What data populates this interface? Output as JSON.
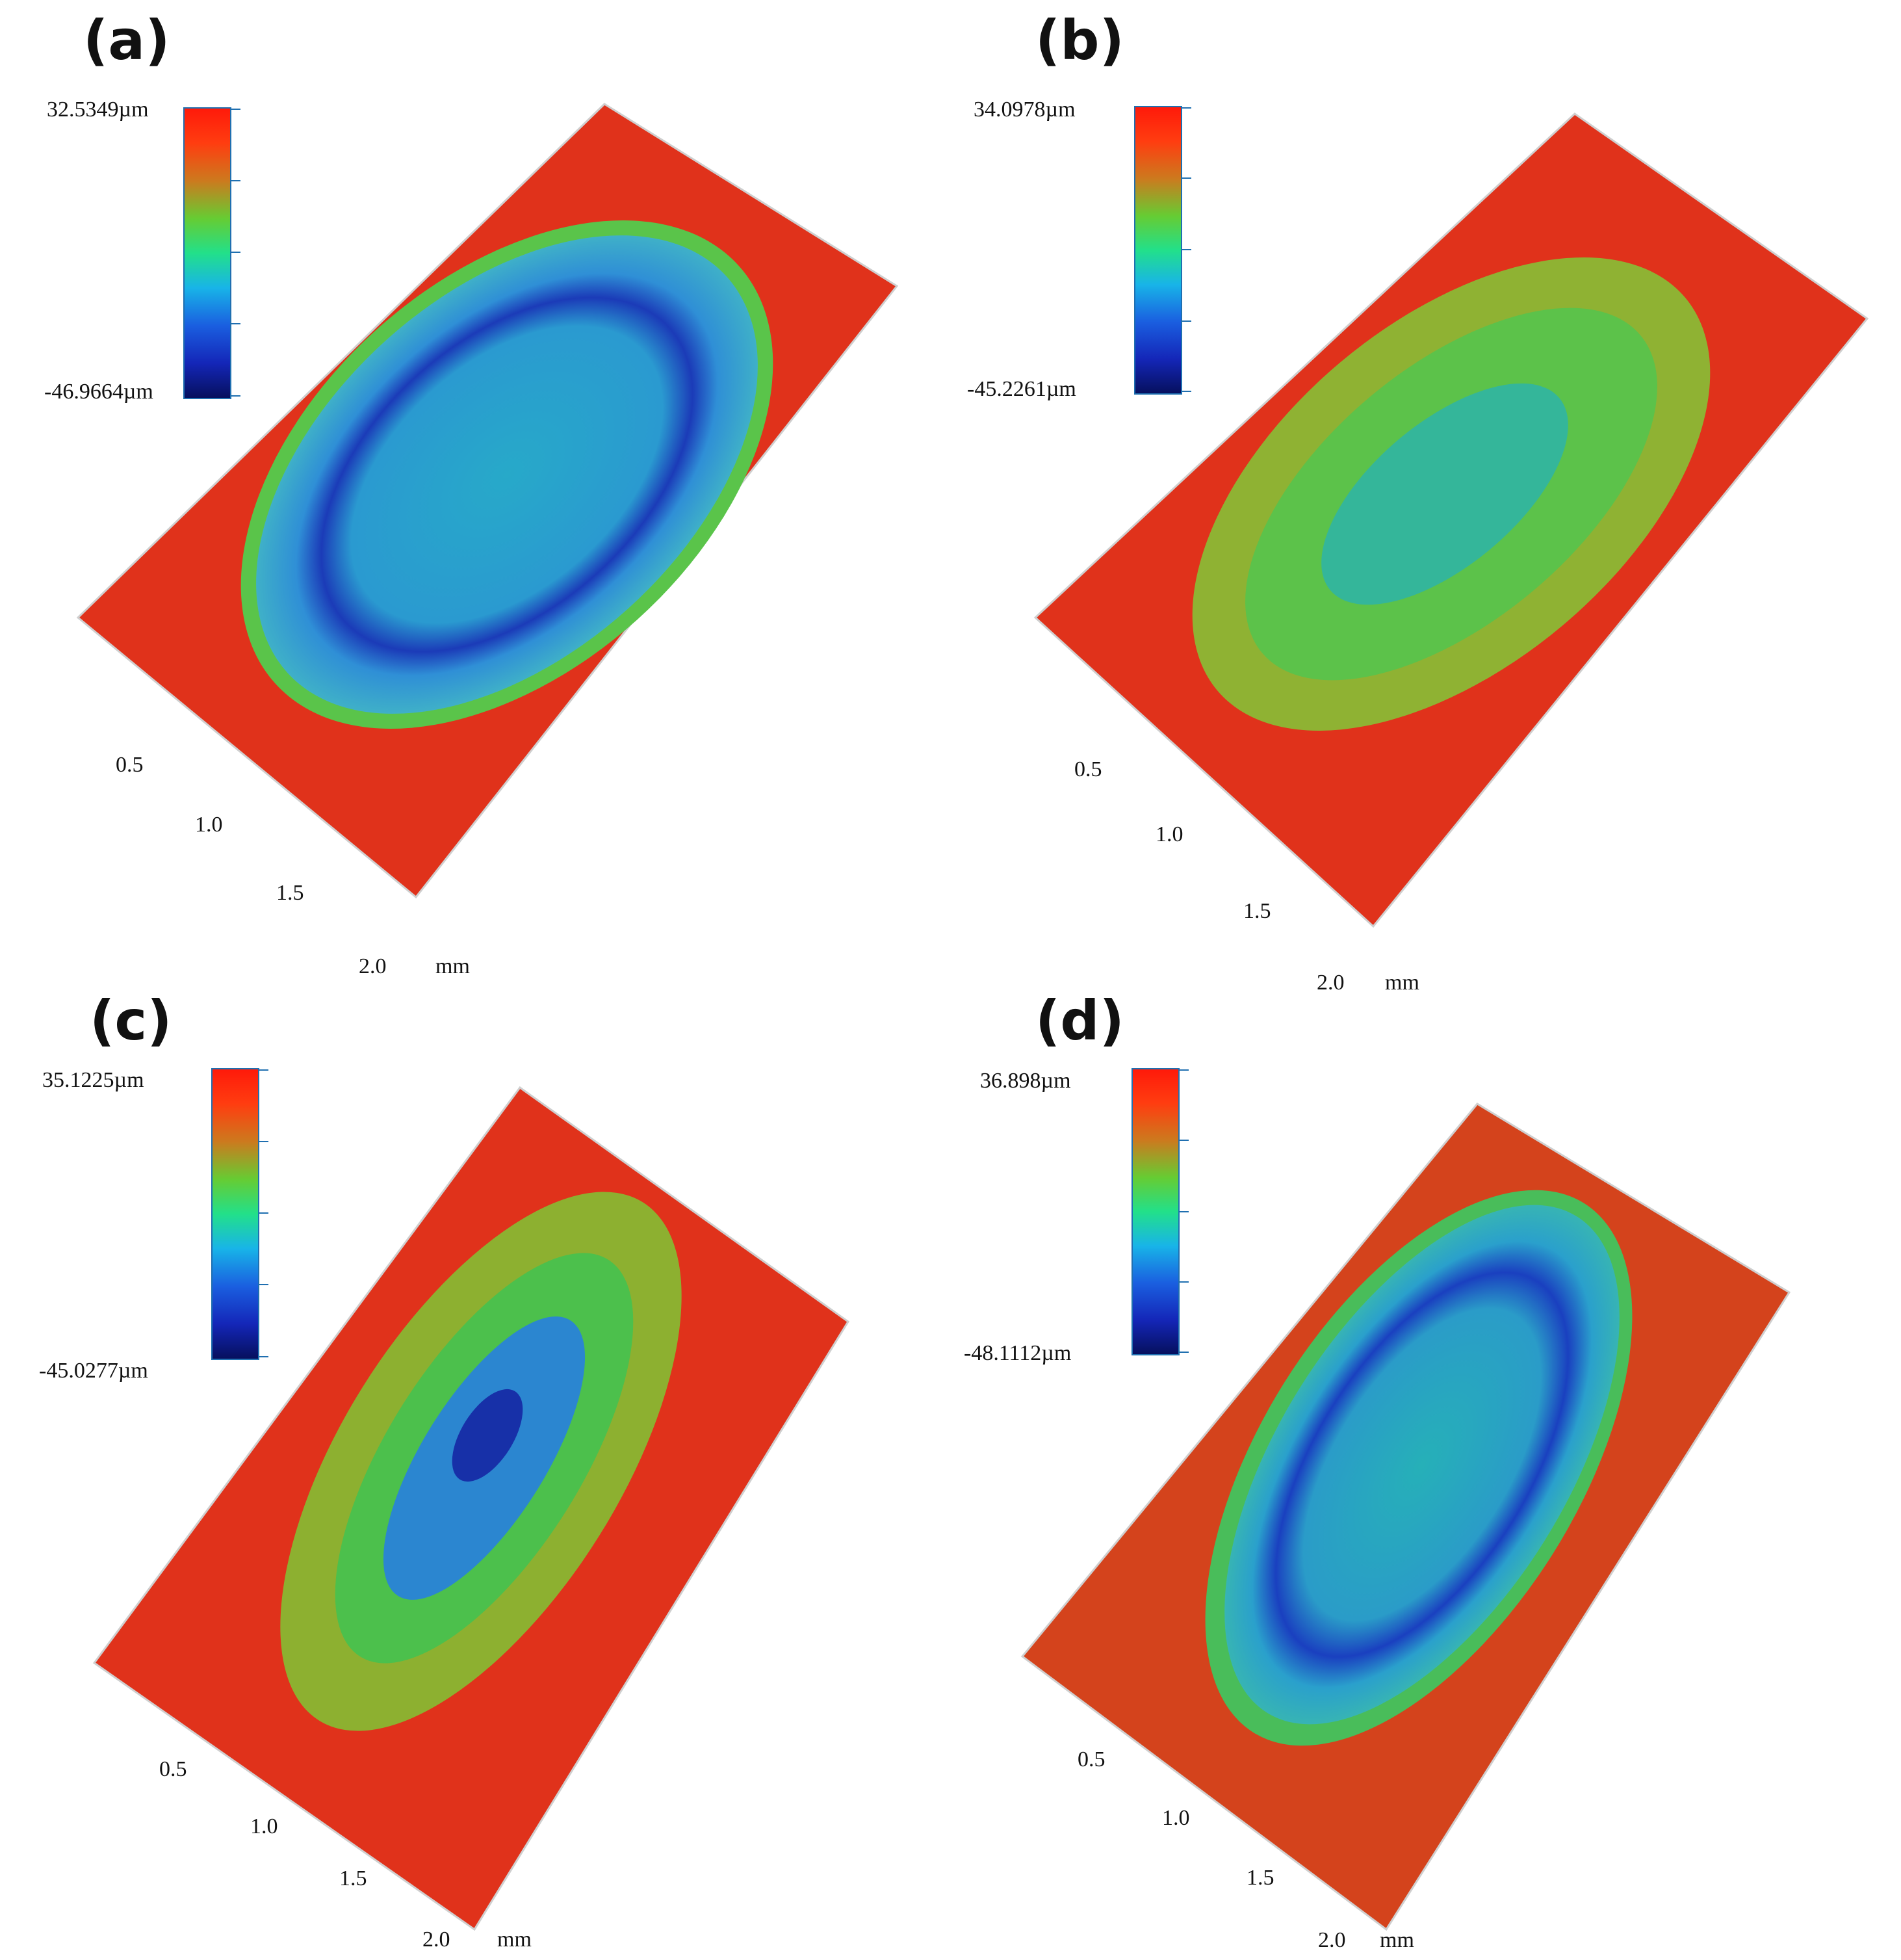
{
  "panels": [
    {
      "id": "a",
      "label": "(a)",
      "cb_max": "32.5349µm",
      "cb_min": "-46.9664µm",
      "ticks": [
        "0.5",
        "1.0",
        "1.5",
        "2.0"
      ],
      "unit": "mm"
    },
    {
      "id": "b",
      "label": "(b)",
      "cb_max": "34.0978µm",
      "cb_min": "-45.2261µm",
      "ticks": [
        "0.5",
        "1.0",
        "1.5",
        "2.0"
      ],
      "unit": "mm"
    },
    {
      "id": "c",
      "label": "(c)",
      "cb_max": "35.1225µm",
      "cb_min": "-45.0277µm",
      "ticks": [
        "0.5",
        "1.0",
        "1.5",
        "2.0"
      ],
      "unit": "mm"
    },
    {
      "id": "d",
      "label": "(d)",
      "cb_max": "36.898µm",
      "cb_min": "-48.1112µm",
      "ticks": [
        "0.5",
        "1.0",
        "1.5",
        "2.0"
      ],
      "unit": "mm"
    }
  ],
  "colors": {
    "high": "#ff1a0a",
    "mid": "#55c53a",
    "low": "#06105e",
    "cyan": "#2ab0cc"
  }
}
